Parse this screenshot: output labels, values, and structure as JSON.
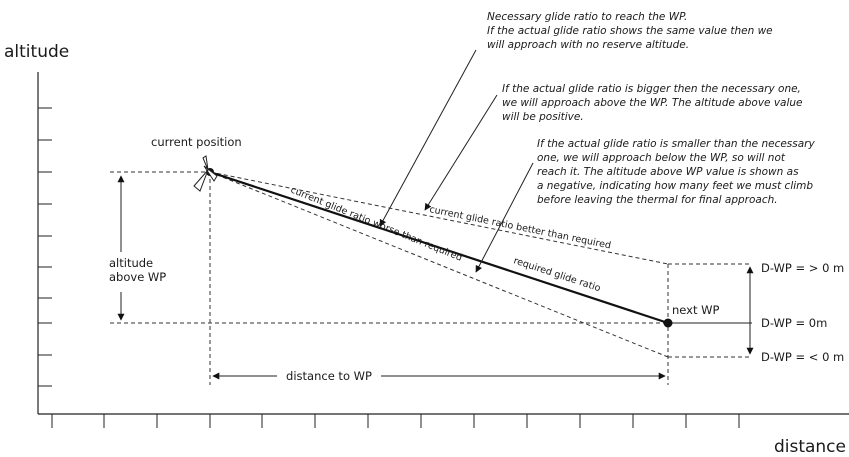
{
  "axes": {
    "y_title": "altitude",
    "x_title": "distance"
  },
  "labels": {
    "current_position": "current position",
    "next_wp": "next WP",
    "altitude_above_wp": [
      "altitude",
      "above WP"
    ],
    "distance_to_wp": "distance to WP",
    "required_glide_ratio": "required glide ratio",
    "better_glide_ratio": "current glide ratio better than required",
    "worse_glide_ratio": "current glide ratio worse than required",
    "dwp_positive": "D-WP = > 0 m",
    "dwp_zero": "D-WP = 0m",
    "dwp_negative": "D-WP = < 0 m"
  },
  "notes": {
    "necessary": [
      "Necessary glide ratio to reach the WP.",
      "If the actual glide ratio shows the same value then we",
      "will approach with no reserve altitude."
    ],
    "bigger": [
      "If the actual glide ratio is bigger then the necessary one,",
      "we will approach above the WP. The altitude above value",
      "will be positive."
    ],
    "smaller": [
      "If the actual glide ratio is smaller than the necessary",
      "one, we will approach below the WP, so will not",
      "reach it. The altitude above WP value is shown as",
      "a negative, indicating how many feet we must climb",
      "before leaving the thermal for final approach."
    ]
  },
  "icons": {
    "glider": "glider-icon"
  }
}
